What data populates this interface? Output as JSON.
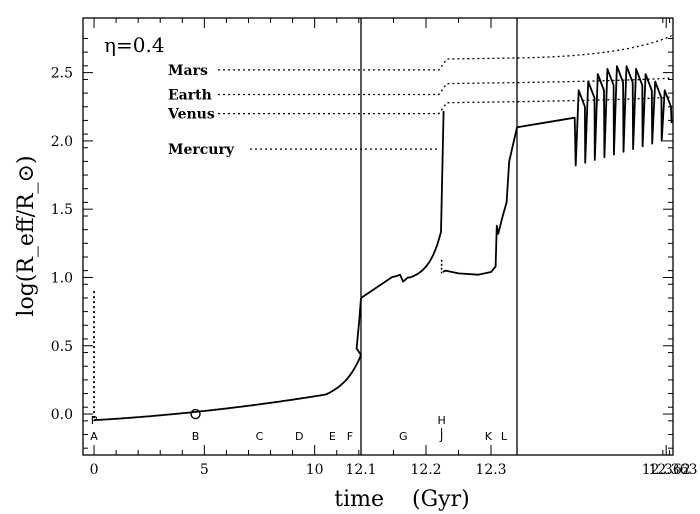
{
  "chart_data": {
    "type": "line",
    "annotation": "η=0.4",
    "xlabel": "time    (Gyr)",
    "ylabel": "log(R_eff/R_⊙)",
    "ylim": [
      -0.3,
      2.9
    ],
    "grid": false,
    "legend": "none",
    "x_axis_segments": [
      {
        "name": "segment-1",
        "xlim": [
          -0.5,
          12.1
        ],
        "ticks": [
          "0",
          "5",
          "10"
        ],
        "tick_values": [
          0,
          5,
          10
        ]
      },
      {
        "name": "segment-2",
        "xlim": [
          12.1,
          12.34
        ],
        "ticks": [
          "12.1",
          "12.2",
          "12.3"
        ],
        "tick_values": [
          12.1,
          12.2,
          12.3
        ]
      },
      {
        "name": "segment-3",
        "xlim": [
          12.34,
          12.363
        ],
        "ticks": [
          "12.362",
          "12.363"
        ],
        "tick_values": [
          12.362,
          12.363
        ]
      }
    ],
    "y_ticks": [
      "0.0",
      "0.5",
      "1.0",
      "1.5",
      "2.0",
      "2.5"
    ],
    "y_tick_values": [
      0.0,
      0.5,
      1.0,
      1.5,
      2.0,
      2.5
    ],
    "phase_labels": [
      {
        "top": "P",
        "bottom": "A",
        "x": 0.0
      },
      {
        "top": "",
        "bottom": "B",
        "x": 4.6
      },
      {
        "top": "",
        "bottom": "C",
        "x": 7.5
      },
      {
        "top": "",
        "bottom": "D",
        "x": 9.3
      },
      {
        "top": "",
        "bottom": "E",
        "x": 10.8
      },
      {
        "top": "",
        "bottom": "F",
        "x": 11.6
      },
      {
        "top": "",
        "bottom": "G",
        "x": 12.165
      },
      {
        "top": "H",
        "bottom": "J",
        "x": 12.224
      },
      {
        "top": "",
        "bottom": "K",
        "x": 12.296
      },
      {
        "top": "",
        "bottom": "L",
        "x": 12.32
      }
    ],
    "planets": [
      {
        "name": "Mars",
        "log_radius": 2.52
      },
      {
        "name": "Earth",
        "log_radius": 2.34
      },
      {
        "name": "Venus",
        "log_radius": 2.2
      },
      {
        "name": "Mercury",
        "log_radius": 1.94
      }
    ],
    "marker_point": {
      "x": 4.6,
      "y": 0.0
    }
  }
}
